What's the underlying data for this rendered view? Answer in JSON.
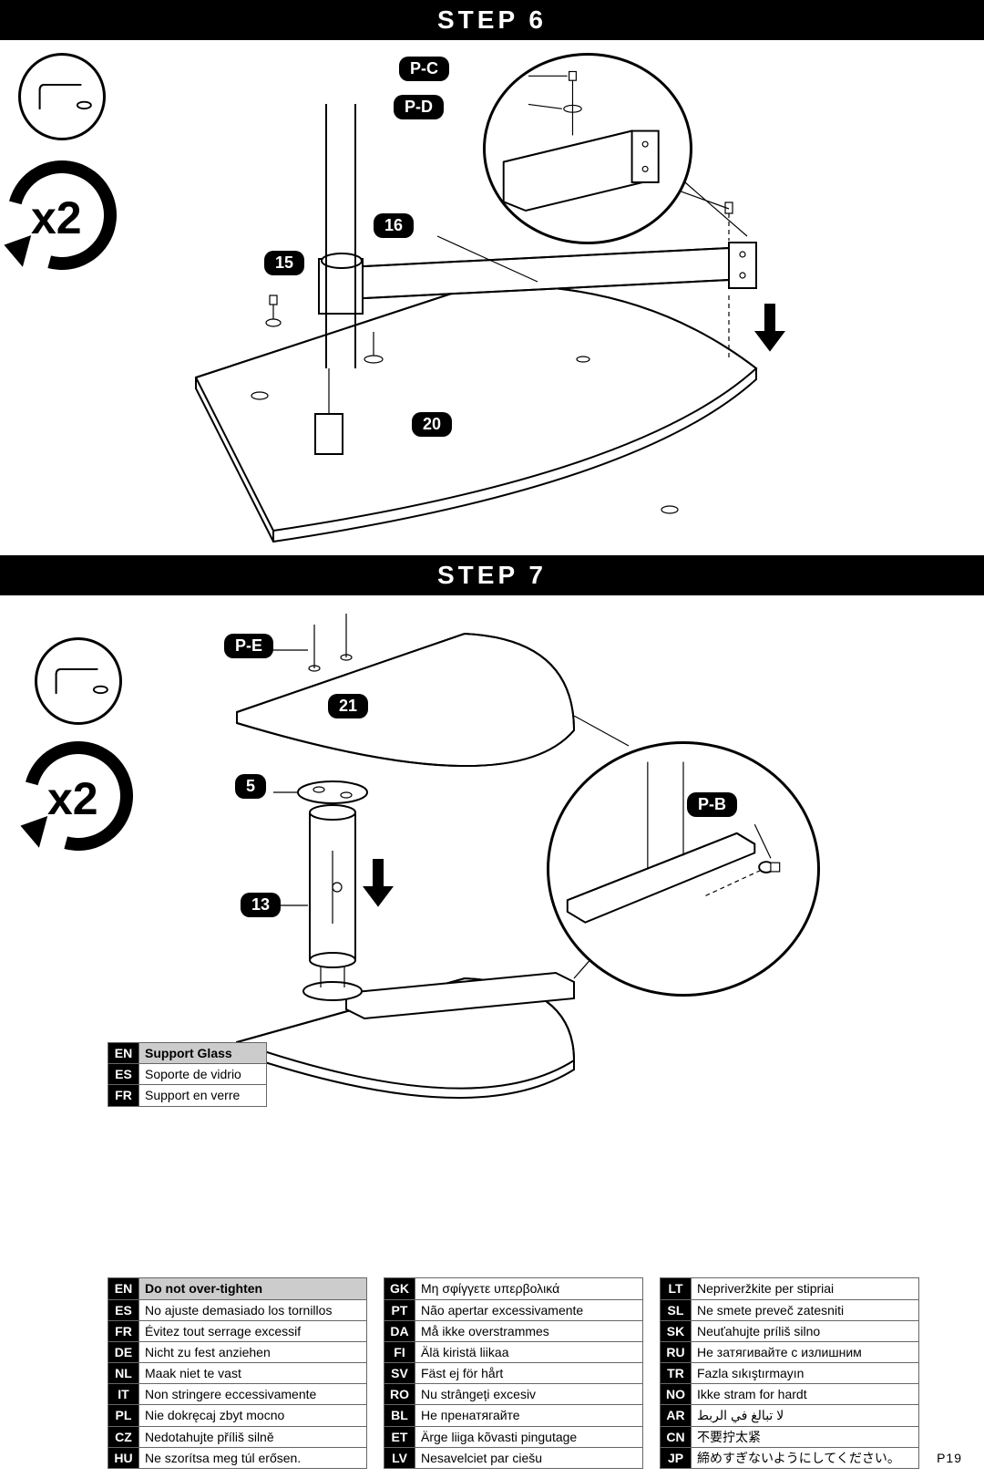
{
  "page_number": "P19",
  "step6": {
    "title": "STEP 6",
    "rotate_count": "x2",
    "parts": {
      "pc": "P-C",
      "pd": "P-D",
      "p15": "15",
      "p16": "16",
      "p20": "20"
    }
  },
  "step7": {
    "title": "STEP 7",
    "rotate_count": "x2",
    "parts": {
      "pe": "P-E",
      "pb": "P-B",
      "p21": "21",
      "p5": "5",
      "p13": "13"
    }
  },
  "support_glass": {
    "rows": [
      {
        "code": "EN",
        "text": "Support Glass",
        "header": true
      },
      {
        "code": "ES",
        "text": "Soporte de vidrio"
      },
      {
        "code": "FR",
        "text": "Support en verre"
      }
    ]
  },
  "warning_columns": [
    [
      {
        "code": "EN",
        "text": "Do not over-tighten",
        "header": true
      },
      {
        "code": "ES",
        "text": "No ajuste demasiado los tornillos"
      },
      {
        "code": "FR",
        "text": "Évitez tout serrage excessif"
      },
      {
        "code": "DE",
        "text": "Nicht zu fest anziehen"
      },
      {
        "code": "NL",
        "text": "Maak niet te vast"
      },
      {
        "code": "IT",
        "text": "Non stringere eccessivamente"
      },
      {
        "code": "PL",
        "text": "Nie dokręcaj zbyt mocno"
      },
      {
        "code": "CZ",
        "text": "Nedotahujte příliš silně"
      },
      {
        "code": "HU",
        "text": "Ne szorítsa meg túl erősen."
      }
    ],
    [
      {
        "code": "GK",
        "text": "Μη σφίγγετε υπερβολικά"
      },
      {
        "code": "PT",
        "text": "Não apertar excessivamente"
      },
      {
        "code": "DA",
        "text": "Må ikke overstrammes"
      },
      {
        "code": "FI",
        "text": "Älä kiristä liikaa"
      },
      {
        "code": "SV",
        "text": "Fäst ej för hårt"
      },
      {
        "code": "RO",
        "text": "Nu strângeți excesiv"
      },
      {
        "code": "BL",
        "text": "Не пренатягайте"
      },
      {
        "code": "ET",
        "text": "Ärge liiga kõvasti pingutage"
      },
      {
        "code": "LV",
        "text": "Nesavelciet par ciešu"
      }
    ],
    [
      {
        "code": "LT",
        "text": "Nepriveržkite per stipriai"
      },
      {
        "code": "SL",
        "text": "Ne smete preveč zatesniti"
      },
      {
        "code": "SK",
        "text": "Neuťahujte príliš silno"
      },
      {
        "code": "RU",
        "text": "Не затягивайте с излишним"
      },
      {
        "code": "TR",
        "text": "Fazla sıkıştırmayın"
      },
      {
        "code": "NO",
        "text": "Ikke stram for hardt"
      },
      {
        "code": "AR",
        "text": "لا تبالغ في الربط"
      },
      {
        "code": "CN",
        "text": "不要拧太紧"
      },
      {
        "code": "JP",
        "text": "締めすぎないようにしてください。"
      }
    ]
  ]
}
